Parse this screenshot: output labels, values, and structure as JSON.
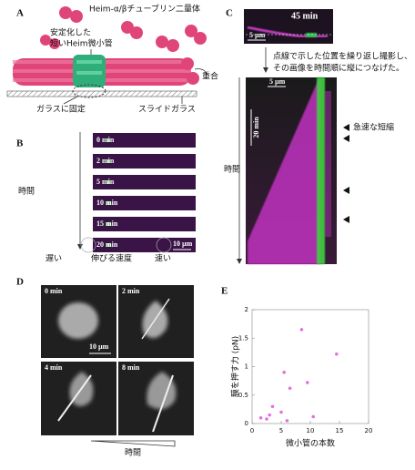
{
  "panels": {
    "a": {
      "label": "A",
      "dimer": "Heim-α/βチューブリン二量体",
      "seed_1": "安定化した",
      "seed_2": "短いHeim微小管",
      "polymerize": "重合",
      "fixed": "ガラスに固定",
      "slide": "スライドガラス"
    },
    "b": {
      "label": "B",
      "times": [
        "0 min",
        "2 min",
        "5 min",
        "10 min",
        "15 min",
        "20 min"
      ],
      "scale": "10 µm",
      "time": "時間",
      "slow": "遅い",
      "speed": "伸びる速度",
      "fast": "速い"
    },
    "c": {
      "label": "C",
      "top_time": "45 min",
      "top_scale": "5 µm",
      "note_1": "点線で示した位置を繰り返し撮影し、",
      "note_2": "その画像を時間順に縦につなげた。",
      "kymo_scale": "5 µm",
      "kymo_time": "20 min",
      "shrink": "急速な短縮",
      "time": "時間"
    },
    "d": {
      "label": "D",
      "times": [
        "0 min",
        "2 min",
        "4 min",
        "8 min"
      ],
      "scale": "10 µm",
      "time": "時間"
    },
    "e": {
      "label": "E"
    }
  },
  "chart_data": {
    "type": "scatter",
    "x_label": "微小管の本数",
    "y_label": "膜を押す力 (pN)",
    "color": "#e070e0",
    "x": [
      1.5,
      2.5,
      3,
      3.5,
      5,
      5.5,
      6,
      6.5,
      8.5,
      9.5,
      10.5,
      14.5
    ],
    "values": [
      0.1,
      0.08,
      0.15,
      0.3,
      0.2,
      0.9,
      0.05,
      0.62,
      1.65,
      0.72,
      0.12,
      1.22
    ],
    "xlim": [
      0,
      20
    ],
    "xticks": [
      0,
      5,
      10,
      15,
      20
    ],
    "ylim": [
      0,
      2
    ],
    "yticks": [
      0,
      0.5,
      1,
      1.5,
      2
    ]
  }
}
